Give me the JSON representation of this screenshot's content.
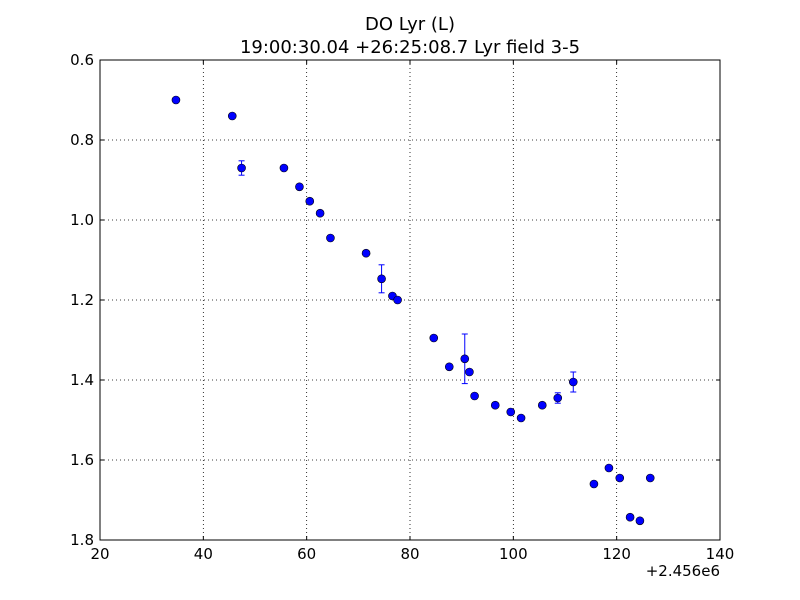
{
  "chart_data": {
    "type": "scatter",
    "title": "DO Lyr (L)",
    "subtitle": "19:00:30.04 +26:25:08.7 Lyr field 3-5",
    "xlabel": "",
    "ylabel": "",
    "x_offset_label": "+2.456e6",
    "xlim": [
      20,
      140
    ],
    "ylim": [
      0.6,
      1.8
    ],
    "y_inverted": true,
    "x_ticks": [
      "20",
      "40",
      "60",
      "80",
      "100",
      "120",
      "140"
    ],
    "y_ticks": [
      "0.6",
      "0.8",
      "1.0",
      "1.2",
      "1.4",
      "1.6",
      "1.8"
    ],
    "grid": true,
    "marker_color": "#0000ff",
    "series": [
      {
        "points": [
          {
            "x": 34.7,
            "y": 0.7,
            "err": 0.0
          },
          {
            "x": 45.6,
            "y": 0.74,
            "err": 0.0
          },
          {
            "x": 47.4,
            "y": 0.87,
            "err": 0.018
          },
          {
            "x": 55.6,
            "y": 0.87,
            "err": 0.0
          },
          {
            "x": 58.6,
            "y": 0.917,
            "err": 0.0
          },
          {
            "x": 60.6,
            "y": 0.953,
            "err": 0.0
          },
          {
            "x": 62.6,
            "y": 0.983,
            "err": 0.0
          },
          {
            "x": 64.6,
            "y": 1.045,
            "err": 0.0
          },
          {
            "x": 71.5,
            "y": 1.083,
            "err": 0.0
          },
          {
            "x": 74.5,
            "y": 1.147,
            "err": 0.035
          },
          {
            "x": 76.6,
            "y": 1.19,
            "err": 0.0
          },
          {
            "x": 77.6,
            "y": 1.2,
            "err": 0.0
          },
          {
            "x": 84.6,
            "y": 1.295,
            "err": 0.0
          },
          {
            "x": 87.6,
            "y": 1.367,
            "err": 0.0
          },
          {
            "x": 90.6,
            "y": 1.347,
            "err": 0.062
          },
          {
            "x": 91.5,
            "y": 1.38,
            "err": 0.0
          },
          {
            "x": 92.5,
            "y": 1.44,
            "err": 0.0
          },
          {
            "x": 96.5,
            "y": 1.463,
            "err": 0.0
          },
          {
            "x": 99.5,
            "y": 1.48,
            "err": 0.0
          },
          {
            "x": 101.5,
            "y": 1.495,
            "err": 0.0
          },
          {
            "x": 105.6,
            "y": 1.463,
            "err": 0.0
          },
          {
            "x": 108.6,
            "y": 1.445,
            "err": 0.013
          },
          {
            "x": 111.6,
            "y": 1.405,
            "err": 0.025
          },
          {
            "x": 115.6,
            "y": 1.66,
            "err": 0.0
          },
          {
            "x": 118.5,
            "y": 1.62,
            "err": 0.0
          },
          {
            "x": 120.6,
            "y": 1.645,
            "err": 0.0
          },
          {
            "x": 122.6,
            "y": 1.743,
            "err": 0.0
          },
          {
            "x": 124.5,
            "y": 1.752,
            "err": 0.0
          },
          {
            "x": 126.5,
            "y": 1.645,
            "err": 0.0
          }
        ]
      }
    ]
  }
}
